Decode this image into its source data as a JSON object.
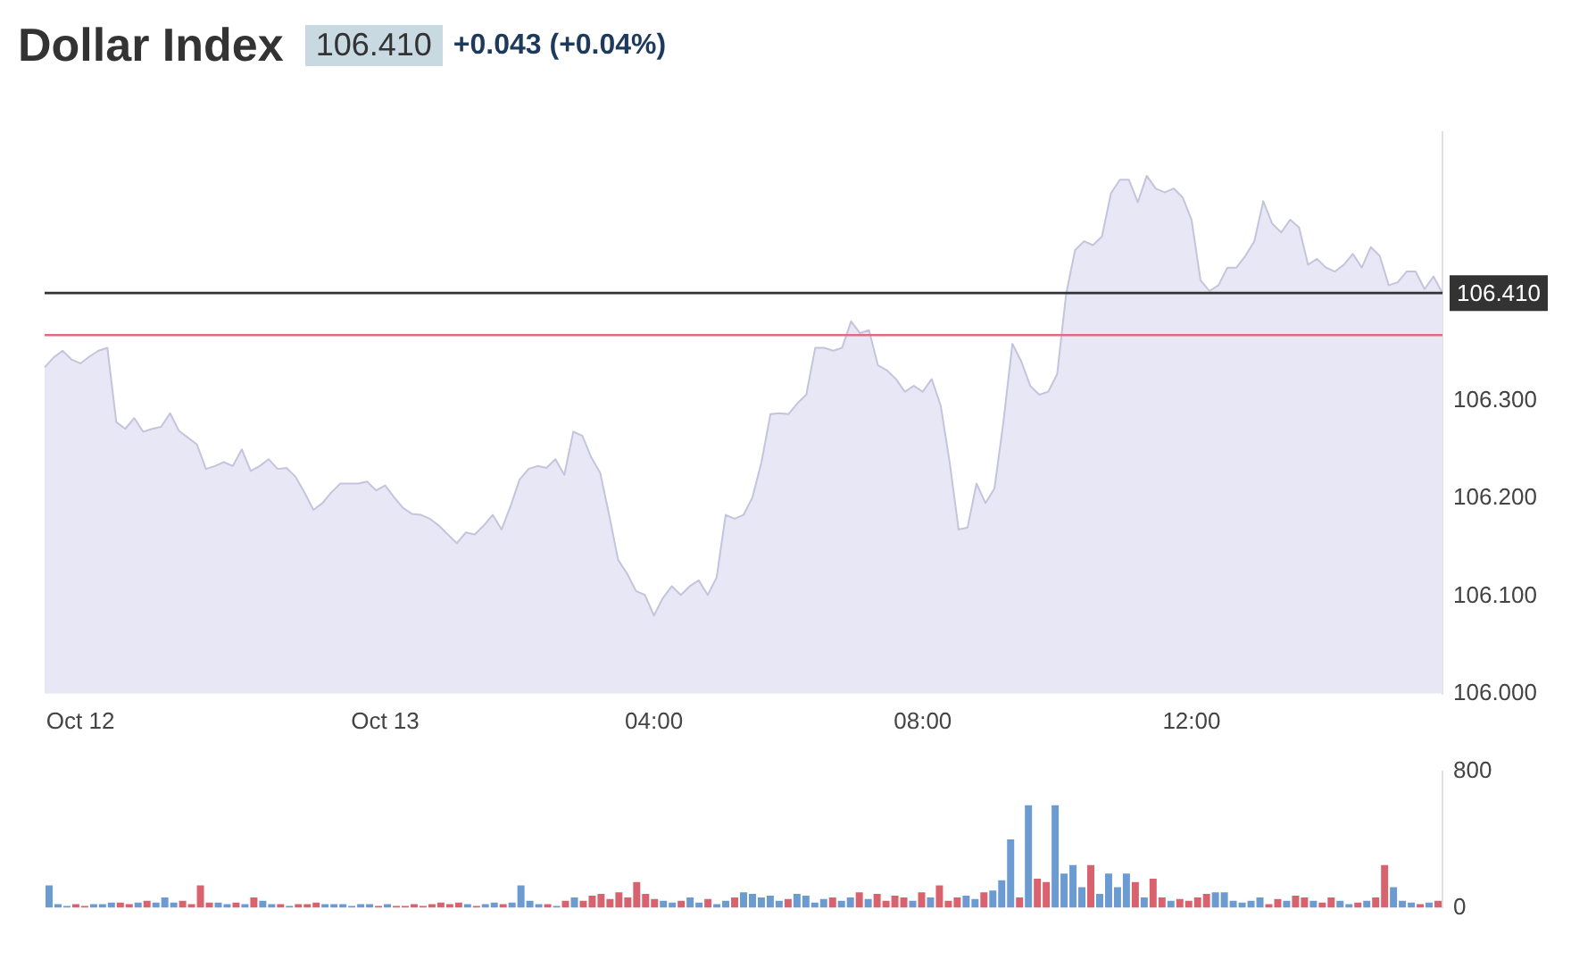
{
  "chart_data": [
    {
      "type": "area",
      "title": "Dollar Index",
      "annotations": [
        "106.410",
        "+0.043 (+0.04%)"
      ],
      "categories": [
        null,
        null,
        null,
        null,
        "Oct 12",
        null,
        null,
        null,
        null,
        null,
        null,
        null,
        null,
        null,
        null,
        null,
        null,
        null,
        null,
        null,
        null,
        null,
        null,
        null,
        null,
        null,
        null,
        null,
        null,
        null,
        null,
        null,
        null,
        null,
        null,
        null,
        null,
        null,
        "Oct 13",
        null,
        null,
        null,
        null,
        null,
        null,
        null,
        null,
        null,
        null,
        null,
        null,
        null,
        null,
        null,
        null,
        null,
        null,
        null,
        null,
        null,
        null,
        null,
        null,
        null,
        null,
        null,
        null,
        null,
        "04:00",
        null,
        null,
        null,
        null,
        null,
        null,
        null,
        null,
        null,
        null,
        null,
        null,
        null,
        null,
        null,
        null,
        null,
        null,
        null,
        null,
        null,
        null,
        null,
        null,
        null,
        null,
        null,
        null,
        null,
        "08:00",
        null,
        null,
        null,
        null,
        null,
        null,
        null,
        null,
        null,
        null,
        null,
        null,
        null,
        null,
        null,
        null,
        null,
        null,
        null,
        null,
        null,
        null,
        null,
        null,
        null,
        null,
        null,
        null,
        null,
        "12:00",
        null,
        null,
        null,
        null,
        null,
        null,
        null,
        null,
        null,
        null,
        null,
        null,
        null,
        null,
        null,
        null,
        null,
        null,
        null,
        null,
        null,
        null,
        null,
        null,
        null,
        null,
        null,
        null
      ],
      "series": [
        {
          "color": "#c4c4dc",
          "values": [
            106.334,
            106.344,
            106.351,
            106.342,
            106.338,
            106.345,
            106.351,
            106.354,
            106.278,
            106.271,
            106.282,
            106.268,
            106.271,
            106.273,
            106.287,
            106.269,
            106.262,
            106.255,
            106.23,
            106.233,
            106.237,
            106.233,
            106.25,
            106.228,
            106.233,
            106.24,
            106.23,
            106.231,
            106.222,
            106.206,
            106.188,
            106.195,
            106.206,
            106.215,
            106.215,
            106.215,
            106.217,
            106.208,
            106.213,
            106.201,
            106.19,
            106.184,
            106.183,
            106.179,
            106.172,
            106.163,
            106.154,
            106.165,
            106.163,
            106.172,
            106.183,
            106.168,
            106.192,
            106.219,
            106.23,
            106.233,
            106.231,
            106.24,
            106.224,
            106.268,
            106.264,
            106.242,
            106.226,
            106.183,
            106.137,
            106.123,
            106.105,
            106.101,
            106.08,
            106.098,
            106.11,
            106.101,
            106.11,
            106.116,
            106.101,
            106.119,
            106.183,
            106.179,
            106.183,
            106.201,
            106.237,
            106.286,
            106.287,
            106.286,
            106.297,
            106.306,
            106.354,
            106.354,
            106.351,
            106.354,
            106.381,
            106.369,
            106.372,
            106.336,
            106.331,
            106.322,
            106.309,
            106.315,
            106.309,
            106.322,
            106.295,
            106.237,
            106.168,
            106.17,
            106.215,
            106.195,
            106.21,
            106.278,
            106.358,
            106.34,
            106.315,
            106.306,
            106.309,
            106.327,
            106.409,
            106.454,
            106.463,
            106.459,
            106.468,
            106.512,
            106.526,
            106.526,
            106.503,
            106.53,
            106.517,
            106.513,
            106.517,
            106.508,
            106.485,
            106.423,
            106.412,
            106.418,
            106.436,
            106.436,
            106.448,
            106.463,
            106.504,
            106.481,
            106.472,
            106.485,
            106.477,
            106.439,
            106.445,
            106.436,
            106.432,
            106.439,
            106.45,
            106.436,
            106.457,
            106.448,
            106.418,
            106.421,
            106.432,
            106.432,
            106.414,
            106.427,
            106.41
          ]
        }
      ],
      "ylim": [
        106.0,
        106.575
      ],
      "yticks": [
        {
          "value": 106.0,
          "label": "106.000"
        },
        {
          "value": 106.1,
          "label": "106.100"
        },
        {
          "value": 106.2,
          "label": "106.200"
        },
        {
          "value": 106.3,
          "label": "106.300"
        }
      ],
      "ref_lines": [
        {
          "axis": "y",
          "value": 106.41,
          "label": "106.410",
          "color": "#333333"
        },
        {
          "axis": "y",
          "value": 106.367,
          "color": "#e06c7c"
        }
      ],
      "legend": false
    },
    {
      "type": "bar",
      "tick_labels": "y",
      "categories": [
        null,
        null,
        null,
        null,
        null,
        null,
        null,
        null,
        null,
        null,
        null,
        null,
        null,
        null,
        null,
        null,
        null,
        null,
        null,
        null,
        null,
        null,
        null,
        null,
        null,
        null,
        null,
        null,
        null,
        null,
        null,
        null,
        null,
        null,
        null,
        null,
        null,
        null,
        null,
        null,
        null,
        null,
        null,
        null,
        null,
        null,
        null,
        null,
        null,
        null,
        null,
        null,
        null,
        null,
        null,
        null,
        null,
        null,
        null,
        null,
        null,
        null,
        null,
        null,
        null,
        null,
        null,
        null,
        null,
        null,
        null,
        null,
        null,
        null,
        null,
        null,
        null,
        null,
        null,
        null,
        null,
        null,
        null,
        null,
        null,
        null,
        null,
        null,
        null,
        null,
        null,
        null,
        null,
        null,
        null,
        null,
        null,
        null,
        null,
        null,
        null,
        null,
        null,
        null,
        null,
        null,
        null,
        null,
        null,
        null,
        null,
        null,
        null,
        null,
        null,
        null,
        null,
        null,
        null,
        null,
        null,
        null,
        null,
        null,
        null,
        null,
        null,
        null,
        null,
        null,
        null,
        null,
        null,
        null,
        null,
        null,
        null,
        null,
        null,
        null,
        null,
        null,
        null,
        null,
        null,
        null,
        null,
        null,
        null,
        null,
        null,
        null,
        null,
        null,
        null,
        null,
        null
      ],
      "values": [
        130,
        20,
        10,
        20,
        10,
        20,
        20,
        30,
        30,
        20,
        30,
        40,
        30,
        60,
        30,
        40,
        20,
        130,
        30,
        30,
        20,
        30,
        20,
        60,
        40,
        20,
        20,
        10,
        20,
        20,
        30,
        20,
        20,
        20,
        10,
        20,
        20,
        10,
        20,
        10,
        10,
        20,
        10,
        20,
        30,
        20,
        30,
        20,
        10,
        20,
        30,
        20,
        30,
        130,
        40,
        20,
        20,
        10,
        40,
        60,
        40,
        70,
        80,
        50,
        90,
        60,
        150,
        80,
        50,
        40,
        30,
        40,
        60,
        30,
        50,
        20,
        40,
        60,
        90,
        80,
        60,
        70,
        40,
        50,
        80,
        70,
        30,
        50,
        60,
        40,
        60,
        90,
        50,
        80,
        40,
        70,
        60,
        40,
        90,
        60,
        130,
        40,
        60,
        70,
        50,
        90,
        100,
        160,
        400,
        60,
        600,
        170,
        150,
        600,
        200,
        250,
        120,
        250,
        80,
        200,
        120,
        200,
        150,
        60,
        170,
        60,
        40,
        50,
        40,
        60,
        80,
        90,
        90,
        40,
        30,
        40,
        60,
        20,
        50,
        40,
        70,
        60,
        40,
        30,
        60,
        40,
        20,
        30,
        40,
        60,
        250,
        120,
        40,
        30,
        20,
        30,
        40
      ],
      "colors": [
        "#6b9bd1",
        "#6b9bd1",
        "#6b9bd1",
        "#d9626f",
        "#d9626f",
        "#6b9bd1",
        "#6b9bd1",
        "#6b9bd1",
        "#d9626f",
        "#d9626f",
        "#6b9bd1",
        "#d9626f",
        "#6b9bd1",
        "#6b9bd1",
        "#6b9bd1",
        "#d9626f",
        "#d9626f",
        "#d9626f",
        "#d9626f",
        "#6b9bd1",
        "#6b9bd1",
        "#d9626f",
        "#6b9bd1",
        "#d9626f",
        "#6b9bd1",
        "#6b9bd1",
        "#d9626f",
        "#6b9bd1",
        "#d9626f",
        "#d9626f",
        "#d9626f",
        "#6b9bd1",
        "#6b9bd1",
        "#6b9bd1",
        "#6b9bd1",
        "#6b9bd1",
        "#6b9bd1",
        "#d9626f",
        "#6b9bd1",
        "#d9626f",
        "#d9626f",
        "#d9626f",
        "#d9626f",
        "#d9626f",
        "#d9626f",
        "#d9626f",
        "#d9626f",
        "#6b9bd1",
        "#d9626f",
        "#6b9bd1",
        "#6b9bd1",
        "#d9626f",
        "#6b9bd1",
        "#6b9bd1",
        "#6b9bd1",
        "#6b9bd1",
        "#d9626f",
        "#6b9bd1",
        "#d9626f",
        "#6b9bd1",
        "#d9626f",
        "#d9626f",
        "#d9626f",
        "#d9626f",
        "#d9626f",
        "#d9626f",
        "#d9626f",
        "#d9626f",
        "#d9626f",
        "#6b9bd1",
        "#6b9bd1",
        "#d9626f",
        "#6b9bd1",
        "#6b9bd1",
        "#d9626f",
        "#6b9bd1",
        "#6b9bd1",
        "#d9626f",
        "#6b9bd1",
        "#6b9bd1",
        "#6b9bd1",
        "#6b9bd1",
        "#6b9bd1",
        "#d9626f",
        "#6b9bd1",
        "#6b9bd1",
        "#6b9bd1",
        "#6b9bd1",
        "#d9626f",
        "#6b9bd1",
        "#6b9bd1",
        "#d9626f",
        "#6b9bd1",
        "#d9626f",
        "#d9626f",
        "#d9626f",
        "#d9626f",
        "#6b9bd1",
        "#d9626f",
        "#6b9bd1",
        "#d9626f",
        "#d9626f",
        "#d9626f",
        "#6b9bd1",
        "#6b9bd1",
        "#d9626f",
        "#6b9bd1",
        "#6b9bd1",
        "#6b9bd1",
        "#d9626f",
        "#6b9bd1",
        "#d9626f",
        "#d9626f",
        "#6b9bd1",
        "#6b9bd1",
        "#6b9bd1",
        "#6b9bd1",
        "#d9626f",
        "#6b9bd1",
        "#6b9bd1",
        "#6b9bd1",
        "#6b9bd1",
        "#d9626f",
        "#6b9bd1",
        "#d9626f",
        "#d9626f",
        "#6b9bd1",
        "#d9626f",
        "#d9626f",
        "#d9626f",
        "#d9626f",
        "#6b9bd1",
        "#6b9bd1",
        "#6b9bd1",
        "#6b9bd1",
        "#6b9bd1",
        "#6b9bd1",
        "#d9626f",
        "#d9626f",
        "#6b9bd1",
        "#d9626f",
        "#d9626f",
        "#6b9bd1",
        "#d9626f",
        "#d9626f",
        "#6b9bd1",
        "#6b9bd1",
        "#d9626f",
        "#6b9bd1",
        "#d9626f",
        "#d9626f",
        "#6b9bd1",
        "#6b9bd1",
        "#6b9bd1",
        "#d9626f",
        "#6b9bd1",
        "#d9626f"
      ],
      "ylim": [
        0,
        800
      ],
      "yticks": [
        0,
        800
      ],
      "legend": false
    }
  ]
}
